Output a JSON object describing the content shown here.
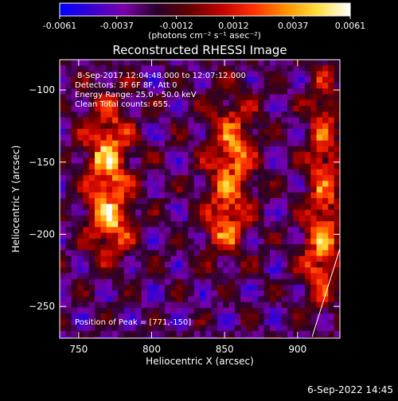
{
  "colorbar": {
    "tick_labels": [
      "-0.0061",
      "-0.0037",
      "-0.0012",
      "0.0012",
      "0.0037",
      "0.0061"
    ],
    "tick_values": [
      -0.0061,
      -0.0037,
      -0.0012,
      0.0012,
      0.0037,
      0.0061
    ],
    "range": [
      -0.0061,
      0.0061
    ],
    "unit_label": "(photons cm⁻² s⁻¹ asec⁻²)",
    "colors": [
      "#0000ff",
      "#3a00d0",
      "#7a00a8",
      "#2a002a",
      "#600000",
      "#c00000",
      "#ff3000",
      "#ff9000",
      "#ffe040",
      "#ffffff"
    ]
  },
  "chart_data": {
    "type": "heatmap",
    "title": "Reconstructed RHESSI Image",
    "xlabel": "Heliocentric X (arcsec)",
    "ylabel": "Heliocentric Y (arcsec)",
    "xlim": [
      737,
      929
    ],
    "ylim": [
      -272,
      -79
    ],
    "x_ticks": [
      750,
      800,
      850,
      900
    ],
    "y_ticks": [
      -100,
      -150,
      -200,
      -250
    ],
    "x_tick_labels": [
      "750",
      "800",
      "850",
      "900"
    ],
    "y_tick_labels": [
      "−100",
      "−150",
      "−200",
      "−250"
    ],
    "annotations": [
      " 8-Sep-2017 12:04:48.000 to 12:07:12.000",
      "Detectors: 3F 6F 8F, Att 0",
      "Energy Range: 25.0 - 50.0 keV",
      "Clean     Total counts: 655."
    ],
    "peak_label": "Position of Peak = [771,-150]",
    "peak": [
      771,
      -150
    ],
    "sources": [
      {
        "x": 770,
        "y": -150,
        "peak": 0.0061,
        "sx": 11,
        "sy": 30
      },
      {
        "x": 772,
        "y": -195,
        "peak": 0.0042,
        "sx": 10,
        "sy": 15
      },
      {
        "x": 855,
        "y": -145,
        "peak": 0.0055,
        "sx": 11,
        "sy": 28
      },
      {
        "x": 850,
        "y": -195,
        "peak": 0.004,
        "sx": 10,
        "sy": 16
      },
      {
        "x": 918,
        "y": -150,
        "peak": 0.0045,
        "sx": 8,
        "sy": 45
      },
      {
        "x": 915,
        "y": -215,
        "peak": 0.004,
        "sx": 9,
        "sy": 22
      }
    ],
    "background_level": -0.0026,
    "limb_line": {
      "from": [
        910,
        -271
      ],
      "to": [
        929,
        -210
      ]
    }
  },
  "footer": {
    "date": "6-Sep-2022 14:45"
  }
}
